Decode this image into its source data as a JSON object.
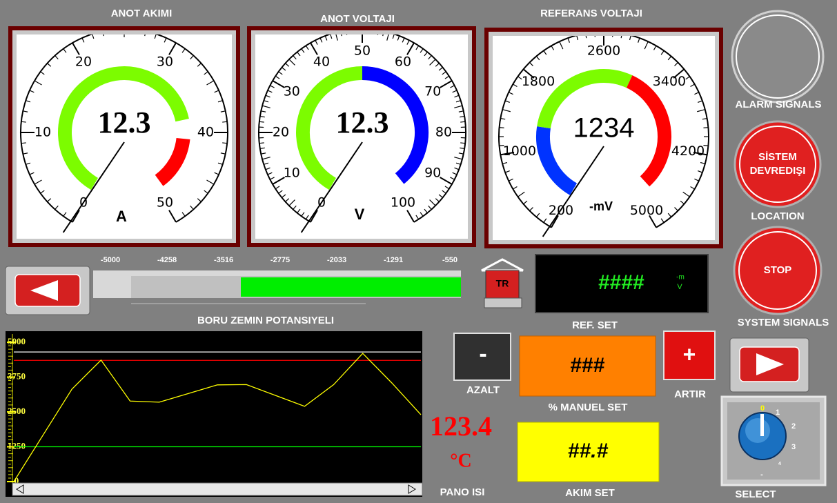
{
  "gauges": [
    {
      "title": "ANOT AKIMI",
      "value": 12.3,
      "unit": "A",
      "ticks": [
        0,
        10,
        20,
        30,
        40,
        50
      ],
      "bands": [
        {
          "from": 0,
          "to": 38,
          "color": "#7cfc00"
        },
        {
          "from": 41,
          "to": 49,
          "color": "#ff0000"
        }
      ]
    },
    {
      "title": "ANOT VOLTAJI",
      "value": 12.3,
      "unit": "V",
      "ticks": [
        0,
        10,
        20,
        30,
        40,
        50,
        60,
        70,
        80,
        90,
        100
      ],
      "bands": [
        {
          "from": 0,
          "to": 50,
          "color": "#7cfc00"
        },
        {
          "from": 50,
          "to": 97,
          "color": "#0000ff"
        }
      ]
    },
    {
      "title": "REFERANS VOLTAJI",
      "value": 1234,
      "unit": "-mV",
      "ticks": [
        200,
        1000,
        1800,
        2600,
        3400,
        4200,
        5000
      ],
      "bands": [
        {
          "from": 200,
          "to": 1300,
          "color": "#0033ff"
        },
        {
          "from": 1300,
          "to": 3000,
          "color": "#7cfc00"
        },
        {
          "from": 3000,
          "to": 4800,
          "color": "#ff0000"
        }
      ]
    }
  ],
  "potential_bar": {
    "ticks": [
      -5000,
      -4258,
      -3516,
      -2775,
      -2033,
      -1291,
      -550
    ],
    "label": "BORU ZEMIN POTANSIYELI"
  },
  "trend": {
    "yticks": [
      0,
      1250,
      2500,
      3750,
      5000
    ],
    "ylim": [
      0,
      5000
    ],
    "values": [
      0,
      1660,
      3320,
      4360,
      2890,
      2850,
      3160,
      3470,
      3480,
      3090,
      2700,
      3480,
      4600,
      3540,
      2400
    ],
    "color": "#ffff00",
    "reference_lines": [
      {
        "value": 4650,
        "color": "#ffffff"
      },
      {
        "value": 4350,
        "color": "#ff0000"
      },
      {
        "value": 1250,
        "color": "#00ff00"
      }
    ]
  },
  "alarm": {
    "label": "ALARM SIGNALS"
  },
  "system_button": {
    "label_1": "SİSTEM",
    "label_2": "DEVREDIŞI"
  },
  "location": "LOCATION",
  "stop_button": "STOP",
  "system_signals": "SYSTEM SIGNALS",
  "tr_button": "TR",
  "ref_display": {
    "text": "####",
    "unit_top": "-m",
    "unit_bottom": "V"
  },
  "ref_set": "REF. SET",
  "decrease": {
    "symbol": "-",
    "label": "AZALT"
  },
  "increase": {
    "symbol": "+",
    "label": "ARTIR"
  },
  "manual_set": {
    "text": "###",
    "label": "% MANUEL SET"
  },
  "current_set": {
    "text": "##.#",
    "label": "AKIM SET"
  },
  "panel_temp": {
    "value": "123.4",
    "unit": "°C",
    "label": "PANO ISI"
  },
  "selector": {
    "label": "SELECT",
    "positions": [
      "0",
      "1",
      "2",
      "3",
      "4",
      "-"
    ]
  }
}
